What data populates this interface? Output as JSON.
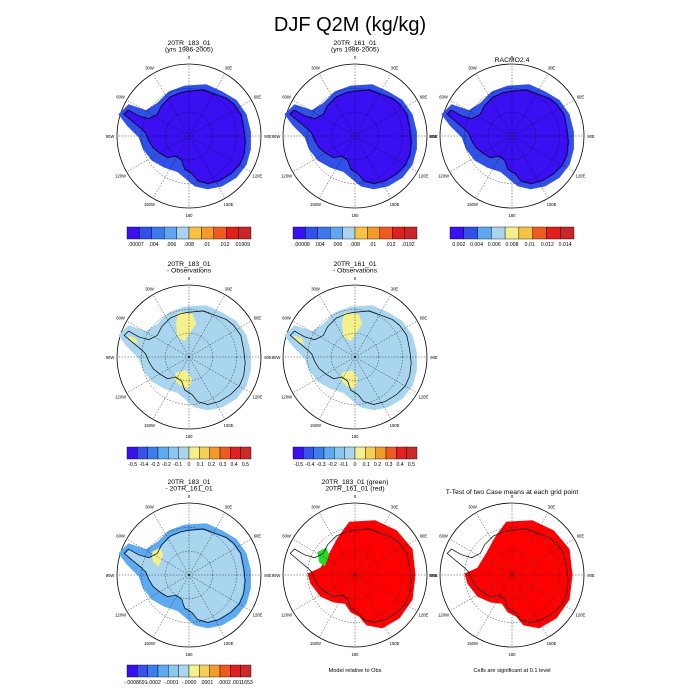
{
  "title": "DJF Q2M (kg/kg)",
  "colors": {
    "cool_scale": [
      "#3a0ff2",
      "#3050e8",
      "#3d79ec",
      "#5ea6f0",
      "#a9d3ee",
      "#f2ef8c",
      "#f7c242",
      "#f59a2a",
      "#ef5a1e",
      "#e0201c",
      "#c9262a"
    ],
    "diff_scale": [
      "#3b10f0",
      "#3553ea",
      "#3d7eee",
      "#5eaaf2",
      "#8cc7ef",
      "#a9d6ee",
      "#f4f08c",
      "#f6cf57",
      "#f49a2a",
      "#ee5a20",
      "#e02020",
      "#c92a2a"
    ],
    "land_line": "#000000",
    "grid_line": "#000000"
  },
  "chart_data": [
    {
      "type": "map",
      "panel": "top-left",
      "title_lines": [
        "20TR_183_01",
        "(yrs 1986-2005)"
      ],
      "fill": "uniform-low",
      "lon_labels": [
        "0",
        "30E",
        "60E",
        "90E",
        "120E",
        "150E",
        "180",
        "150W",
        "120W",
        "90W",
        "60W",
        "30W"
      ],
      "colorbar": {
        "ticks": [
          ".00007",
          ".004",
          ".006",
          ".008",
          ".01",
          ".012",
          ".01909"
        ],
        "boxes": 10
      }
    },
    {
      "type": "map",
      "panel": "top-middle",
      "title_lines": [
        "20TR_161_01",
        "(yrs 1986-2005)"
      ],
      "fill": "uniform-low",
      "lon_labels": [
        "0",
        "30E",
        "60E",
        "90E",
        "120E",
        "150E",
        "180",
        "150W",
        "120W",
        "90W",
        "60W",
        "30W"
      ],
      "colorbar": {
        "ticks": [
          ".00008",
          ".004",
          ".006",
          ".008",
          ".01",
          ".012",
          ".0192"
        ],
        "boxes": 10
      }
    },
    {
      "type": "map",
      "panel": "top-right",
      "title_lines": [
        "RACMO2.4"
      ],
      "fill": "uniform-low",
      "lon_labels": [
        "0",
        "30E",
        "60E",
        "90E",
        "120E",
        "150E",
        "180",
        "150W",
        "120W",
        "90W",
        "60W",
        "30W"
      ],
      "colorbar": {
        "ticks": [
          "0.002",
          "0.004",
          "0.006",
          "0.008",
          "0.01",
          "0.012",
          "0.014"
        ],
        "boxes": 9
      }
    },
    {
      "type": "map",
      "panel": "middle-left",
      "title_lines": [
        "20TR_183_01",
        "- Observations"
      ],
      "fill": "difference",
      "lon_labels": [
        "0",
        "30E",
        "60E",
        "90E",
        "120E",
        "150E",
        "180",
        "150W",
        "120W",
        "90W",
        "60W",
        "30W"
      ],
      "colorbar": {
        "ticks": [
          "-0.5",
          "-0.4",
          "-0.3",
          "-0.2",
          "-0.1",
          "0",
          "0.1",
          "0.2",
          "0.3",
          "0.4",
          "0.5"
        ],
        "boxes": 12
      }
    },
    {
      "type": "map",
      "panel": "middle-middle",
      "title_lines": [
        "20TR_161_01",
        "- Observations"
      ],
      "fill": "difference",
      "lon_labels": [
        "0",
        "30E",
        "60E",
        "90E",
        "120E",
        "150E",
        "180",
        "150W",
        "120W",
        "90W",
        "60W",
        "30W"
      ],
      "colorbar": {
        "ticks": [
          "-0.5",
          "-0.4",
          "-0.3",
          "-0.2",
          "-0.1",
          "0",
          "0.1",
          "0.2",
          "0.3",
          "0.4",
          "0.5"
        ],
        "boxes": 12
      }
    },
    {
      "type": "map",
      "panel": "bottom-left",
      "title_lines": [
        "20TR_183_01",
        "- 20TR_161_01"
      ],
      "fill": "difference-small",
      "lon_labels": [
        "0",
        "30E",
        "60E",
        "90E",
        "120E",
        "150E",
        "180",
        "150W",
        "120W",
        "90W",
        "60W",
        "30W"
      ],
      "colorbar": {
        "ticks": [
          "-.0008691",
          "-.0002",
          "-.0001",
          "-.0000",
          ".0001",
          ".0002",
          ".0011653"
        ],
        "boxes": 12
      }
    },
    {
      "type": "map",
      "panel": "bottom-middle",
      "title_lines": [
        "20TR_183_01 (green)",
        "20TR_161_01 (red)"
      ],
      "fill": "significance-two",
      "lon_labels": [
        "0",
        "30E",
        "60E",
        "90E",
        "120E",
        "150E",
        "180",
        "150W",
        "120W",
        "90W",
        "60W",
        "30W"
      ],
      "note": "Model relative to Obs"
    },
    {
      "type": "map",
      "panel": "bottom-right",
      "title_lines": [
        "T-Test of two Case means at each grid point"
      ],
      "fill": "significance",
      "lon_labels": [
        "0",
        "30E",
        "60E",
        "90E",
        "120E",
        "150E",
        "180",
        "150W",
        "120W",
        "90W",
        "60W",
        "30W"
      ],
      "note": "Cells are significant at 0.1 level"
    }
  ]
}
